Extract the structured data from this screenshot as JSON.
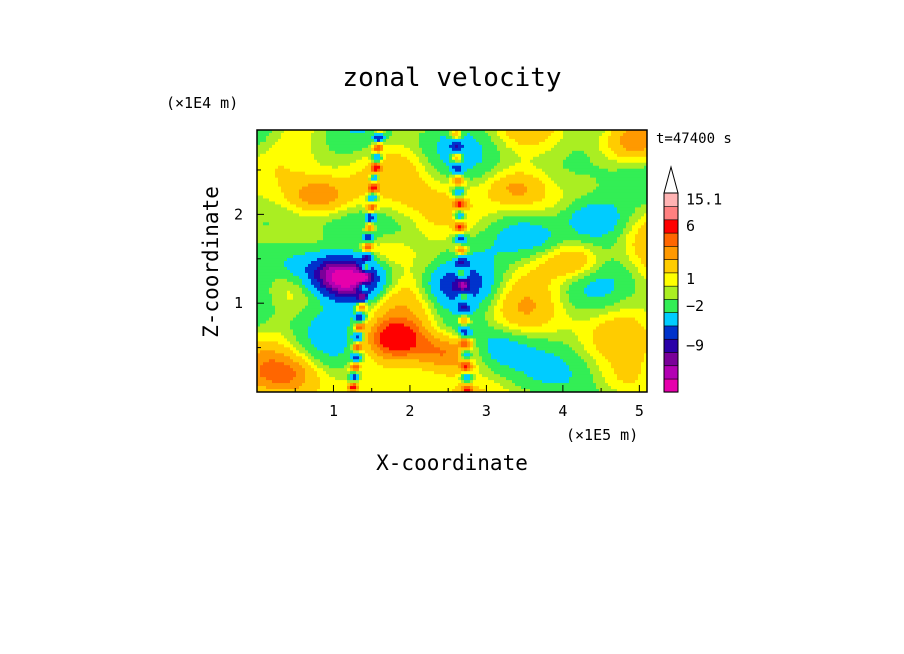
{
  "chart_data": {
    "type": "heatmap",
    "title": "zonal velocity",
    "xlabel": "X-coordinate",
    "ylabel": "Z-coordinate",
    "x_unit": "(×1E5 m)",
    "y_unit": "(×1E4 m)",
    "time_label": "t=47400 s",
    "xlim": [
      0,
      5.1
    ],
    "ylim": [
      0,
      2.95
    ],
    "x_ticks": [
      1,
      2,
      3,
      4,
      5
    ],
    "y_ticks": [
      1,
      2
    ],
    "colorbar": {
      "labels": [
        "15.1",
        "6",
        "1",
        "−2",
        "−9"
      ],
      "label_levels": [
        15.1,
        6,
        1,
        -2,
        -9
      ],
      "colors": [
        "#e600ac",
        "#b300b3",
        "#7a0099",
        "#2a00a8",
        "#0033cc",
        "#00ccff",
        "#33ee55",
        "#aaee22",
        "#ffff00",
        "#ffcc00",
        "#ff9900",
        "#ff6600",
        "#ff0000",
        "#ff8080",
        "#ffb3b3"
      ],
      "extends_top": true
    },
    "features": [
      {
        "x": 1.0,
        "z": 1.35,
        "u": -7
      },
      {
        "x": 1.2,
        "z": 1.25,
        "u": -11
      },
      {
        "x": 0.5,
        "z": 1.45,
        "u": -4
      },
      {
        "x": 2.6,
        "z": 1.2,
        "u": -6
      },
      {
        "x": 3.6,
        "z": 1.75,
        "u": -4
      },
      {
        "x": 4.4,
        "z": 1.95,
        "u": -5
      },
      {
        "x": 3.2,
        "z": 0.5,
        "u": -3
      },
      {
        "x": 1.8,
        "z": 0.6,
        "u": 7
      },
      {
        "x": 2.5,
        "z": 0.45,
        "u": 6
      },
      {
        "x": 4.2,
        "z": 1.45,
        "u": 5
      },
      {
        "x": 1.6,
        "z": 1.6,
        "u": 4
      },
      {
        "x": 0.8,
        "z": 2.2,
        "u": 5
      },
      {
        "x": 3.4,
        "z": 2.3,
        "u": 4
      },
      {
        "x": 4.9,
        "z": 2.8,
        "u": 3
      },
      {
        "x": 0.4,
        "z": 0.2,
        "u": 3
      },
      {
        "x": 4.8,
        "z": 0.1,
        "u": 2
      },
      {
        "x": 0.5,
        "z": 2.8,
        "u": 0
      },
      {
        "x": 1.9,
        "z": 2.6,
        "u": 1
      }
    ]
  }
}
